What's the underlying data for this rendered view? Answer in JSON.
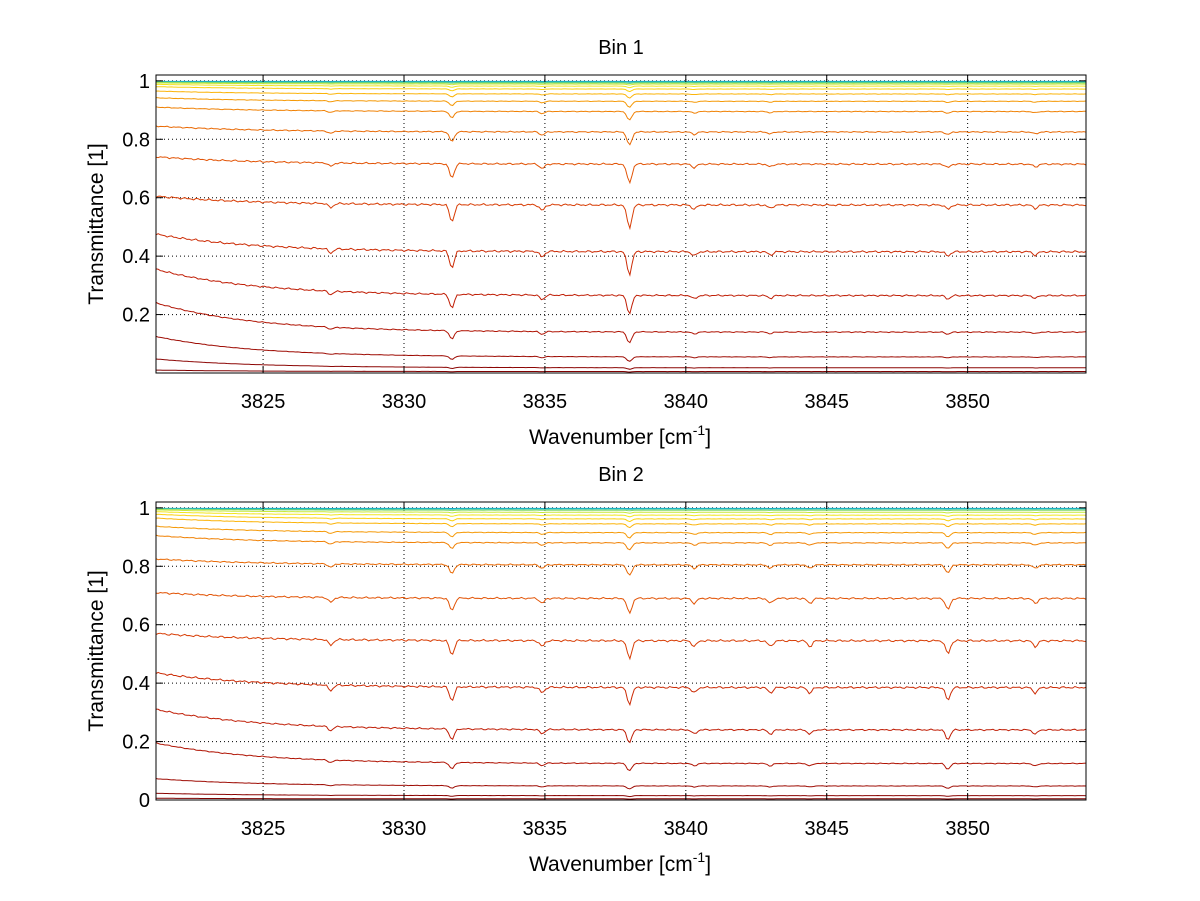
{
  "chart_data": [
    {
      "type": "line",
      "title": "Bin 1",
      "xlabel": "Wavenumber [cm",
      "xlabel_sup": "-1",
      "xlabel_tail": "]",
      "ylabel": "Transmittance [1]",
      "xlim": [
        3821.2,
        3854.2
      ],
      "ylim": [
        0.0,
        1.02
      ],
      "xticks": [
        3825,
        3830,
        3835,
        3840,
        3845,
        3850
      ],
      "xtick_labels": [
        "3825",
        "3830",
        "3835",
        "3840",
        "3845",
        "3850"
      ],
      "yticks": [
        0.2,
        0.4,
        0.6,
        0.8,
        1
      ],
      "ytick_labels": [
        "0.2",
        "0.4",
        "0.6",
        "0.8",
        "1"
      ],
      "grid": true,
      "series": [
        {
          "values_summary": "base transmittance 0.998",
          "base": 0.998,
          "slope": 0.0,
          "color": "#0aa6d6"
        },
        {
          "base": 0.996,
          "slope": 0.0,
          "color": "#28c0b0"
        },
        {
          "base": 0.993,
          "slope": 0.002,
          "color": "#7fd96a"
        },
        {
          "base": 0.989,
          "slope": 0.004,
          "color": "#c8e83a"
        },
        {
          "base": 0.982,
          "slope": 0.006,
          "color": "#f2e620"
        },
        {
          "base": 0.972,
          "slope": 0.008,
          "color": "#fbd010"
        },
        {
          "base": 0.955,
          "slope": 0.01,
          "color": "#fbb40a"
        },
        {
          "base": 0.93,
          "slope": 0.012,
          "color": "#f59a08"
        },
        {
          "base": 0.895,
          "slope": 0.015,
          "color": "#f08206"
        },
        {
          "base": 0.825,
          "slope": 0.02,
          "color": "#e96a06"
        },
        {
          "base": 0.715,
          "slope": 0.025,
          "color": "#e25406"
        },
        {
          "base": 0.575,
          "slope": 0.03,
          "color": "#d83e06"
        },
        {
          "base": 0.415,
          "slope": 0.06,
          "color": "#cc2c06"
        },
        {
          "base": 0.265,
          "slope": 0.09,
          "color": "#c01e06"
        },
        {
          "base": 0.14,
          "slope": 0.1,
          "color": "#b01404"
        },
        {
          "base": 0.055,
          "slope": 0.07,
          "color": "#9e0c04"
        },
        {
          "base": 0.018,
          "slope": 0.03,
          "color": "#8c0604"
        },
        {
          "base": 0.005,
          "slope": 0.005,
          "color": "#800000"
        }
      ],
      "dips": [
        {
          "x": 3831.7,
          "depth": 0.06
        },
        {
          "x": 3838.0,
          "depth": 0.08
        },
        {
          "x": 3834.9,
          "depth": 0.02
        },
        {
          "x": 3827.4,
          "depth": 0.015
        },
        {
          "x": 3840.3,
          "depth": 0.015
        },
        {
          "x": 3843.0,
          "depth": 0.012
        },
        {
          "x": 3849.3,
          "depth": 0.015
        },
        {
          "x": 3852.4,
          "depth": 0.012
        }
      ]
    },
    {
      "type": "line",
      "title": "Bin 2",
      "xlabel": "Wavenumber [cm",
      "xlabel_sup": "-1",
      "xlabel_tail": "]",
      "ylabel": "Transmittance [1]",
      "xlim": [
        3821.2,
        3854.2
      ],
      "ylim": [
        0.0,
        1.02
      ],
      "xticks": [
        3825,
        3830,
        3835,
        3840,
        3845,
        3850
      ],
      "xtick_labels": [
        "3825",
        "3830",
        "3835",
        "3840",
        "3845",
        "3850"
      ],
      "yticks": [
        0,
        0.2,
        0.4,
        0.6,
        0.8,
        1
      ],
      "ytick_labels": [
        "0",
        "0.2",
        "0.4",
        "0.6",
        "0.8",
        "1"
      ],
      "grid": true,
      "series": [
        {
          "base": 0.998,
          "slope": 0.0,
          "color": "#0aa6d6"
        },
        {
          "base": 0.996,
          "slope": 0.0,
          "color": "#28c0b0"
        },
        {
          "base": 0.992,
          "slope": 0.004,
          "color": "#7fd96a"
        },
        {
          "base": 0.985,
          "slope": 0.008,
          "color": "#c8e83a"
        },
        {
          "base": 0.975,
          "slope": 0.012,
          "color": "#f2e620"
        },
        {
          "base": 0.962,
          "slope": 0.016,
          "color": "#fbd010"
        },
        {
          "base": 0.945,
          "slope": 0.02,
          "color": "#fbb40a"
        },
        {
          "base": 0.915,
          "slope": 0.022,
          "color": "#f59a08"
        },
        {
          "base": 0.88,
          "slope": 0.025,
          "color": "#f08206"
        },
        {
          "base": 0.805,
          "slope": 0.02,
          "color": "#e96a06"
        },
        {
          "base": 0.69,
          "slope": 0.02,
          "color": "#e25406"
        },
        {
          "base": 0.545,
          "slope": 0.025,
          "color": "#d83e06"
        },
        {
          "base": 0.385,
          "slope": 0.05,
          "color": "#cc2c06"
        },
        {
          "base": 0.24,
          "slope": 0.07,
          "color": "#c01e06"
        },
        {
          "base": 0.125,
          "slope": 0.07,
          "color": "#b01404"
        },
        {
          "base": 0.048,
          "slope": 0.025,
          "color": "#9e0c04"
        },
        {
          "base": 0.015,
          "slope": 0.008,
          "color": "#8c0604"
        },
        {
          "base": 0.004,
          "slope": 0.002,
          "color": "#800000"
        }
      ],
      "dips": [
        {
          "x": 3831.7,
          "depth": 0.05
        },
        {
          "x": 3838.0,
          "depth": 0.06
        },
        {
          "x": 3834.9,
          "depth": 0.02
        },
        {
          "x": 3827.4,
          "depth": 0.02
        },
        {
          "x": 3840.3,
          "depth": 0.02
        },
        {
          "x": 3843.0,
          "depth": 0.02
        },
        {
          "x": 3844.4,
          "depth": 0.02
        },
        {
          "x": 3849.3,
          "depth": 0.045
        },
        {
          "x": 3852.4,
          "depth": 0.02
        }
      ]
    }
  ]
}
